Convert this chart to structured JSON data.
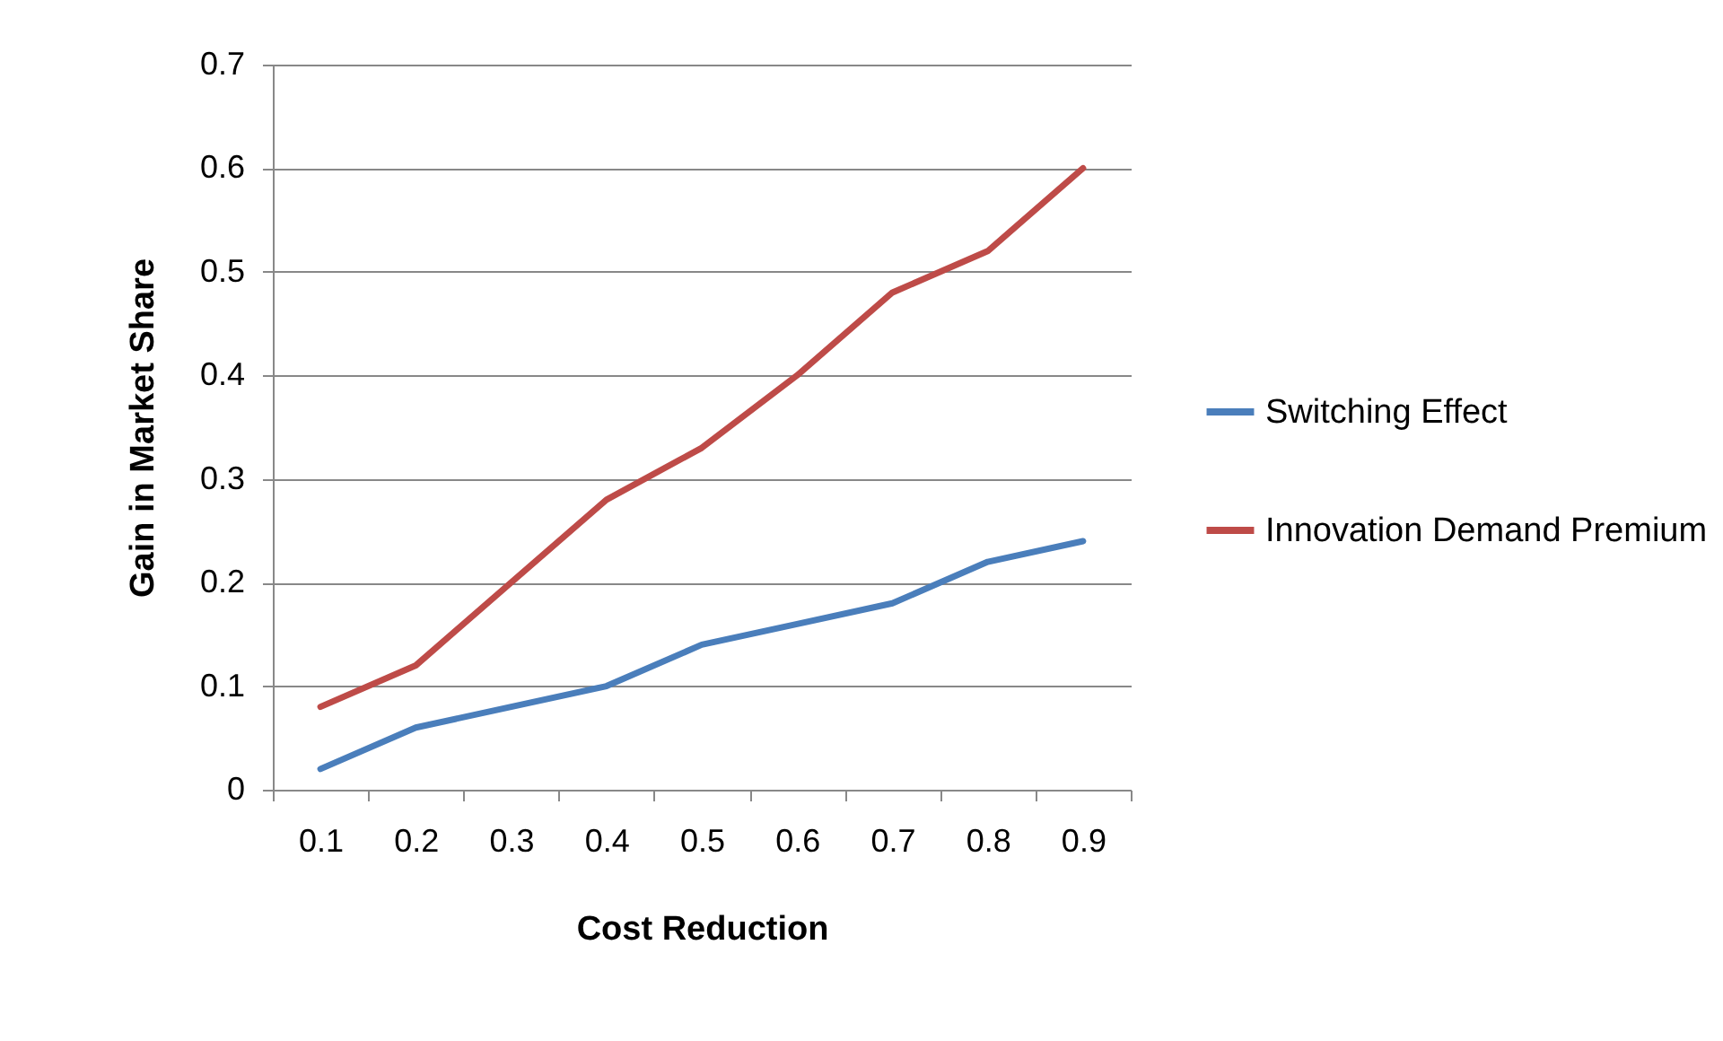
{
  "chart_data": {
    "type": "line",
    "xlabel": "Cost Reduction",
    "ylabel": "Gain in Market Share",
    "categories": [
      "0.1",
      "0.2",
      "0.3",
      "0.4",
      "0.5",
      "0.6",
      "0.7",
      "0.8",
      "0.9"
    ],
    "series": [
      {
        "name": "Switching Effect",
        "color": "#4a7ebb",
        "values": [
          0.02,
          0.06,
          0.08,
          0.1,
          0.14,
          0.16,
          0.18,
          0.22,
          0.24
        ]
      },
      {
        "name": "Innovation Demand Premium",
        "color": "#be4b48",
        "values": [
          0.08,
          0.12,
          0.2,
          0.28,
          0.33,
          0.4,
          0.48,
          0.52,
          0.6
        ]
      }
    ],
    "ylim": [
      0,
      0.7
    ],
    "yticks": [
      0,
      0.1,
      0.2,
      0.3,
      0.4,
      0.5,
      0.6,
      0.7
    ],
    "grid": "y",
    "legend": "right",
    "marker": "none",
    "line_style": "solid"
  }
}
